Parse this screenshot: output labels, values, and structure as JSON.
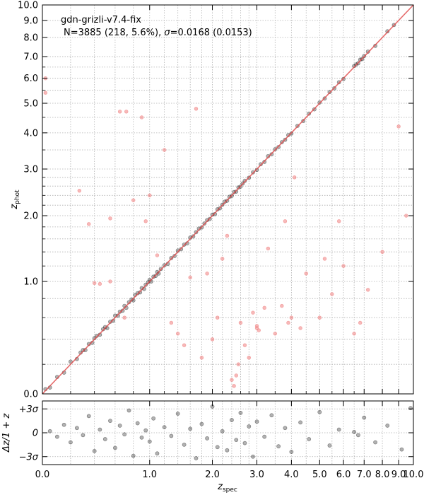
{
  "chart_data": [
    {
      "type": "scatter",
      "panel": "main",
      "title": "",
      "xlabel": "",
      "ylabel": "z",
      "ylabel_sub": "phot",
      "x_scale": "log(1+z)",
      "y_scale": "log(1+z)",
      "xlim": [
        0.0,
        10.0
      ],
      "ylim": [
        0.0,
        10.0
      ],
      "grid": true,
      "x_tick_labels": [
        "0.0",
        "1.0",
        "2.0",
        "3.0",
        "4.0",
        "5.0",
        "6.0",
        "7.0",
        "8.0",
        "9.0",
        "10.0"
      ],
      "y_tick_labels": [
        "0.0",
        "1.0",
        "2.0",
        "3.0",
        "4.0",
        "5.0",
        "6.0",
        "7.0",
        "8.0",
        "9.0",
        "10.0"
      ],
      "annotation_line1": "gdn-grizli-v7.4-fix",
      "annotation_line2_prefix": "N=3885 (218,  5.6%), ",
      "annotation_sigma_symbol": "σ",
      "annotation_line2_suffix": "=0.0168 (0.0153)",
      "one_to_one_line": {
        "x": [
          0.0,
          10.0
        ],
        "y": [
          0.0,
          10.0
        ],
        "color": "#e05050"
      },
      "series": [
        {
          "label_role": "good fits",
          "color": "#000000",
          "count": 3667,
          "points": [
            [
              0.02,
              0.03
            ],
            [
              0.05,
              0.04
            ],
            [
              0.1,
              0.11
            ],
            [
              0.15,
              0.14
            ],
            [
              0.2,
              0.22
            ],
            [
              0.25,
              0.24
            ],
            [
              0.28,
              0.29
            ],
            [
              0.3,
              0.31
            ],
            [
              0.32,
              0.31
            ],
            [
              0.35,
              0.36
            ],
            [
              0.38,
              0.37
            ],
            [
              0.4,
              0.41
            ],
            [
              0.42,
              0.43
            ],
            [
              0.45,
              0.44
            ],
            [
              0.48,
              0.49
            ],
            [
              0.5,
              0.51
            ],
            [
              0.52,
              0.5
            ],
            [
              0.55,
              0.56
            ],
            [
              0.58,
              0.57
            ],
            [
              0.6,
              0.62
            ],
            [
              0.63,
              0.62
            ],
            [
              0.65,
              0.66
            ],
            [
              0.68,
              0.67
            ],
            [
              0.7,
              0.72
            ],
            [
              0.72,
              0.7
            ],
            [
              0.75,
              0.76
            ],
            [
              0.78,
              0.79
            ],
            [
              0.8,
              0.78
            ],
            [
              0.82,
              0.84
            ],
            [
              0.85,
              0.86
            ],
            [
              0.88,
              0.87
            ],
            [
              0.9,
              0.92
            ],
            [
              0.93,
              0.91
            ],
            [
              0.95,
              0.96
            ],
            [
              0.98,
              0.99
            ],
            [
              1.0,
              1.02
            ],
            [
              1.02,
              1.0
            ],
            [
              1.05,
              1.06
            ],
            [
              1.08,
              1.07
            ],
            [
              1.1,
              1.12
            ],
            [
              1.12,
              1.1
            ],
            [
              1.15,
              1.16
            ],
            [
              1.2,
              1.21
            ],
            [
              1.25,
              1.23
            ],
            [
              1.3,
              1.31
            ],
            [
              1.35,
              1.34
            ],
            [
              1.4,
              1.42
            ],
            [
              1.45,
              1.44
            ],
            [
              1.5,
              1.51
            ],
            [
              1.55,
              1.53
            ],
            [
              1.6,
              1.62
            ],
            [
              1.65,
              1.64
            ],
            [
              1.7,
              1.71
            ],
            [
              1.75,
              1.77
            ],
            [
              1.8,
              1.79
            ],
            [
              1.85,
              1.86
            ],
            [
              1.9,
              1.92
            ],
            [
              1.95,
              1.94
            ],
            [
              2.0,
              2.02
            ],
            [
              2.05,
              2.03
            ],
            [
              2.1,
              2.12
            ],
            [
              2.15,
              2.14
            ],
            [
              2.2,
              2.21
            ],
            [
              2.25,
              2.27
            ],
            [
              2.3,
              2.29
            ],
            [
              2.35,
              2.37
            ],
            [
              2.4,
              2.39
            ],
            [
              2.45,
              2.47
            ],
            [
              2.5,
              2.48
            ],
            [
              2.55,
              2.57
            ],
            [
              2.6,
              2.59
            ],
            [
              2.65,
              2.66
            ],
            [
              2.7,
              2.72
            ],
            [
              2.8,
              2.79
            ],
            [
              2.9,
              2.92
            ],
            [
              3.0,
              2.98
            ],
            [
              3.1,
              3.12
            ],
            [
              3.2,
              3.18
            ],
            [
              3.3,
              3.33
            ],
            [
              3.4,
              3.38
            ],
            [
              3.5,
              3.52
            ],
            [
              3.6,
              3.58
            ],
            [
              3.7,
              3.72
            ],
            [
              3.8,
              3.79
            ],
            [
              3.9,
              3.93
            ],
            [
              4.0,
              3.98
            ],
            [
              4.2,
              4.22
            ],
            [
              4.4,
              4.38
            ],
            [
              4.6,
              4.63
            ],
            [
              4.8,
              4.78
            ],
            [
              5.0,
              5.03
            ],
            [
              5.2,
              5.18
            ],
            [
              5.4,
              5.43
            ],
            [
              5.6,
              5.58
            ],
            [
              5.8,
              5.83
            ],
            [
              6.0,
              5.97
            ],
            [
              6.5,
              6.55
            ],
            [
              6.6,
              6.62
            ],
            [
              6.7,
              6.68
            ],
            [
              6.8,
              6.85
            ],
            [
              6.9,
              6.88
            ],
            [
              7.0,
              7.03
            ],
            [
              7.2,
              7.25
            ],
            [
              7.6,
              7.55
            ],
            [
              8.3,
              8.35
            ],
            [
              8.7,
              8.72
            ]
          ]
        },
        {
          "label_role": "outliers",
          "color": "#f08080",
          "count": 218,
          "points": [
            [
              0.02,
              6.0
            ],
            [
              0.02,
              5.4
            ],
            [
              0.27,
              2.5
            ],
            [
              0.35,
              1.85
            ],
            [
              0.4,
              0.98
            ],
            [
              0.45,
              0.97
            ],
            [
              0.55,
              1.0
            ],
            [
              0.65,
              4.7
            ],
            [
              0.72,
              4.7
            ],
            [
              0.55,
              1.95
            ],
            [
              0.7,
              0.6
            ],
            [
              0.8,
              2.3
            ],
            [
              0.9,
              4.5
            ],
            [
              0.95,
              1.9
            ],
            [
              1.0,
              2.4
            ],
            [
              1.1,
              1.35
            ],
            [
              1.2,
              3.5
            ],
            [
              1.3,
              0.55
            ],
            [
              1.4,
              0.45
            ],
            [
              1.5,
              0.35
            ],
            [
              1.6,
              1.05
            ],
            [
              1.7,
              4.8
            ],
            [
              1.8,
              0.25
            ],
            [
              1.9,
              1.1
            ],
            [
              2.0,
              0.4
            ],
            [
              2.1,
              0.6
            ],
            [
              2.2,
              1.3
            ],
            [
              2.3,
              1.65
            ],
            [
              2.4,
              0.09
            ],
            [
              2.45,
              0.05
            ],
            [
              2.5,
              0.12
            ],
            [
              2.55,
              0.2
            ],
            [
              2.6,
              0.55
            ],
            [
              2.7,
              0.35
            ],
            [
              2.8,
              0.25
            ],
            [
              2.9,
              0.65
            ],
            [
              3.0,
              0.5
            ],
            [
              3.0,
              0.52
            ],
            [
              3.05,
              0.48
            ],
            [
              3.2,
              0.7
            ],
            [
              3.3,
              1.45
            ],
            [
              3.5,
              0.45
            ],
            [
              3.7,
              0.72
            ],
            [
              3.8,
              1.9
            ],
            [
              3.9,
              0.55
            ],
            [
              4.0,
              0.6
            ],
            [
              4.1,
              2.8
            ],
            [
              4.3,
              0.5
            ],
            [
              4.5,
              1.1
            ],
            [
              5.0,
              0.6
            ],
            [
              5.2,
              1.3
            ],
            [
              5.5,
              0.85
            ],
            [
              5.8,
              1.9
            ],
            [
              6.0,
              1.2
            ],
            [
              6.5,
              0.45
            ],
            [
              6.8,
              0.55
            ],
            [
              7.2,
              0.9
            ],
            [
              8.0,
              1.4
            ],
            [
              9.0,
              4.2
            ],
            [
              9.5,
              2.0
            ]
          ]
        }
      ]
    },
    {
      "type": "scatter",
      "panel": "residual",
      "xlabel": "z",
      "xlabel_sub": "spec",
      "ylabel": "Δz/1 + z",
      "x_scale": "log(1+z)",
      "xlim": [
        0.0,
        10.0
      ],
      "ylim_sigma": [
        -4.0,
        4.0
      ],
      "grid": true,
      "x_tick_labels": [
        "0.0",
        "1.0",
        "2.0",
        "3.0",
        "4.0",
        "5.0",
        "6.0",
        "7.0",
        "8.0",
        "9.0",
        "10.0"
      ],
      "y_tick_labels": [
        "+3σ",
        "0",
        "−3σ"
      ],
      "y_tick_values_sigma": [
        3,
        0,
        -3
      ],
      "series": [
        {
          "color": "#000000",
          "points_z_sigma": [
            [
              0.05,
              0.2
            ],
            [
              0.1,
              -0.5
            ],
            [
              0.15,
              1.0
            ],
            [
              0.2,
              -1.2
            ],
            [
              0.25,
              0.6
            ],
            [
              0.3,
              -0.3
            ],
            [
              0.35,
              2.1
            ],
            [
              0.4,
              -2.3
            ],
            [
              0.45,
              0.4
            ],
            [
              0.5,
              -0.8
            ],
            [
              0.55,
              1.5
            ],
            [
              0.6,
              -1.9
            ],
            [
              0.65,
              0.9
            ],
            [
              0.7,
              -0.2
            ],
            [
              0.75,
              2.8
            ],
            [
              0.8,
              -2.9
            ],
            [
              0.85,
              1.2
            ],
            [
              0.9,
              -0.6
            ],
            [
              0.95,
              0.3
            ],
            [
              1.0,
              -1.1
            ],
            [
              1.05,
              1.8
            ],
            [
              1.1,
              -2.6
            ],
            [
              1.2,
              0.7
            ],
            [
              1.3,
              -0.4
            ],
            [
              1.4,
              2.4
            ],
            [
              1.5,
              -1.5
            ],
            [
              1.6,
              0.5
            ],
            [
              1.7,
              -3.2
            ],
            [
              1.8,
              1.1
            ],
            [
              1.9,
              -0.7
            ],
            [
              2.0,
              3.3
            ],
            [
              2.1,
              -1.8
            ],
            [
              2.2,
              0.2
            ],
            [
              2.3,
              -2.2
            ],
            [
              2.4,
              1.6
            ],
            [
              2.5,
              -0.9
            ],
            [
              2.6,
              2.5
            ],
            [
              2.7,
              -1.3
            ],
            [
              2.8,
              0.8
            ],
            [
              2.9,
              -3.0
            ],
            [
              3.0,
              1.4
            ],
            [
              3.2,
              -0.5
            ],
            [
              3.4,
              2.2
            ],
            [
              3.6,
              -1.7
            ],
            [
              3.8,
              0.6
            ],
            [
              4.0,
              -2.4
            ],
            [
              4.3,
              1.3
            ],
            [
              4.6,
              -0.8
            ],
            [
              5.0,
              2.6
            ],
            [
              5.4,
              -1.6
            ],
            [
              5.8,
              0.4
            ],
            [
              6.5,
              0.1
            ],
            [
              6.7,
              -0.3
            ],
            [
              7.0,
              1.9
            ],
            [
              7.6,
              -1.2
            ],
            [
              8.3,
              0.9
            ],
            [
              9.2,
              -2.1
            ],
            [
              9.8,
              3.1
            ]
          ]
        }
      ]
    }
  ]
}
